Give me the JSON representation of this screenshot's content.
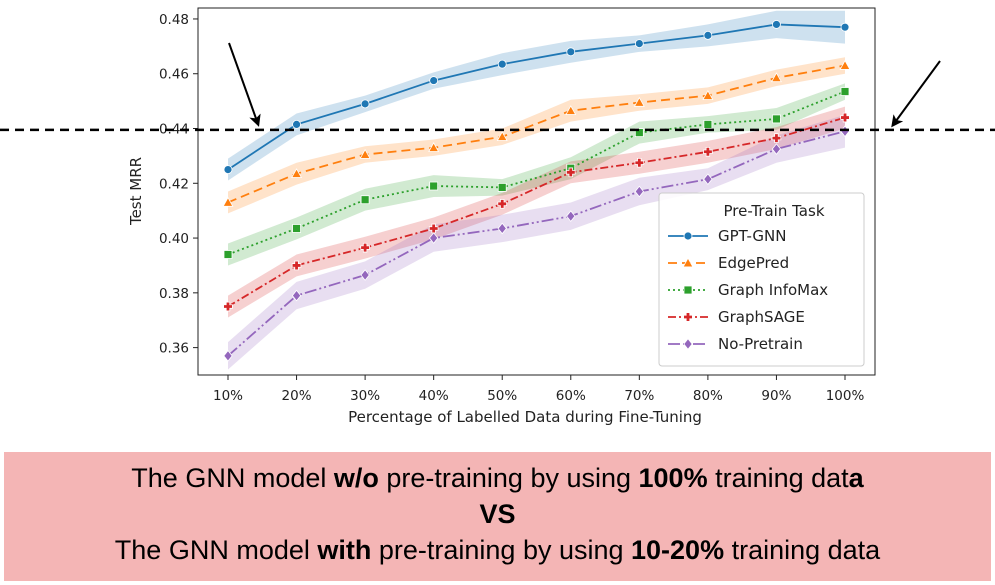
{
  "chart_data": {
    "type": "line",
    "xlabel": "Percentage of Labelled Data during Fine-Tuning",
    "ylabel": "Test MRR",
    "categories": [
      "10%",
      "20%",
      "30%",
      "40%",
      "50%",
      "60%",
      "70%",
      "80%",
      "90%",
      "100%"
    ],
    "ylim": [
      0.35,
      0.484
    ],
    "yticks": [
      "0.36",
      "0.38",
      "0.40",
      "0.42",
      "0.44",
      "0.46",
      "0.48"
    ],
    "ytick_values": [
      0.36,
      0.38,
      0.4,
      0.42,
      0.44,
      0.46,
      0.48
    ],
    "grid": false,
    "legend_title": "Pre-Train Task",
    "legend_position": "lower-right",
    "reference_line": 0.4395,
    "series": [
      {
        "name": "GPT-GNN",
        "color": "#1f77b4",
        "marker": "circle",
        "dash": "",
        "values": [
          0.425,
          0.4415,
          0.449,
          0.4575,
          0.4635,
          0.468,
          0.471,
          0.474,
          0.478,
          0.477
        ],
        "band": [
          0.004,
          0.004,
          0.003,
          0.003,
          0.004,
          0.004,
          0.003,
          0.004,
          0.005,
          0.006
        ]
      },
      {
        "name": "EdgePred",
        "color": "#ff7f0e",
        "marker": "triangle",
        "dash": "9,5",
        "values": [
          0.413,
          0.4235,
          0.4305,
          0.433,
          0.437,
          0.4465,
          0.4495,
          0.452,
          0.4585,
          0.463
        ],
        "band": [
          0.004,
          0.004,
          0.003,
          0.003,
          0.003,
          0.004,
          0.003,
          0.003,
          0.003,
          0.003
        ]
      },
      {
        "name": "Graph InfoMax",
        "color": "#2ca02c",
        "marker": "square",
        "dash": "2,3",
        "values": [
          0.394,
          0.4035,
          0.414,
          0.419,
          0.4185,
          0.4255,
          0.4385,
          0.4415,
          0.4435,
          0.4535
        ],
        "band": [
          0.004,
          0.004,
          0.004,
          0.004,
          0.003,
          0.004,
          0.004,
          0.003,
          0.004,
          0.003
        ]
      },
      {
        "name": "GraphSAGE",
        "color": "#d62728",
        "marker": "plus",
        "dash": "8,3,2,3",
        "values": [
          0.375,
          0.39,
          0.3965,
          0.4035,
          0.4125,
          0.424,
          0.4275,
          0.4315,
          0.4365,
          0.444
        ],
        "band": [
          0.004,
          0.004,
          0.004,
          0.004,
          0.004,
          0.004,
          0.004,
          0.004,
          0.004,
          0.004
        ]
      },
      {
        "name": "No-Pretrain",
        "color": "#9467bd",
        "marker": "diamond",
        "dash": "12,3,2,3,2,3",
        "values": [
          0.357,
          0.379,
          0.3865,
          0.4,
          0.4035,
          0.408,
          0.417,
          0.4215,
          0.4325,
          0.439
        ],
        "band": [
          0.005,
          0.005,
          0.005,
          0.005,
          0.005,
          0.005,
          0.005,
          0.004,
          0.005,
          0.006
        ]
      }
    ]
  },
  "caption": {
    "line1_pre": "The GNN model ",
    "line1_bold1": "w/o",
    "line1_mid": " pre-training by using ",
    "line1_bold2": "100%",
    "line1_post": " training dat",
    "line1_bold3": "a",
    "line2": "VS",
    "line3_pre": "The GNN model ",
    "line3_bold1": "with",
    "line3_mid": " pre-training by using ",
    "line3_bold2": "10-20%",
    "line3_post": " training data"
  }
}
